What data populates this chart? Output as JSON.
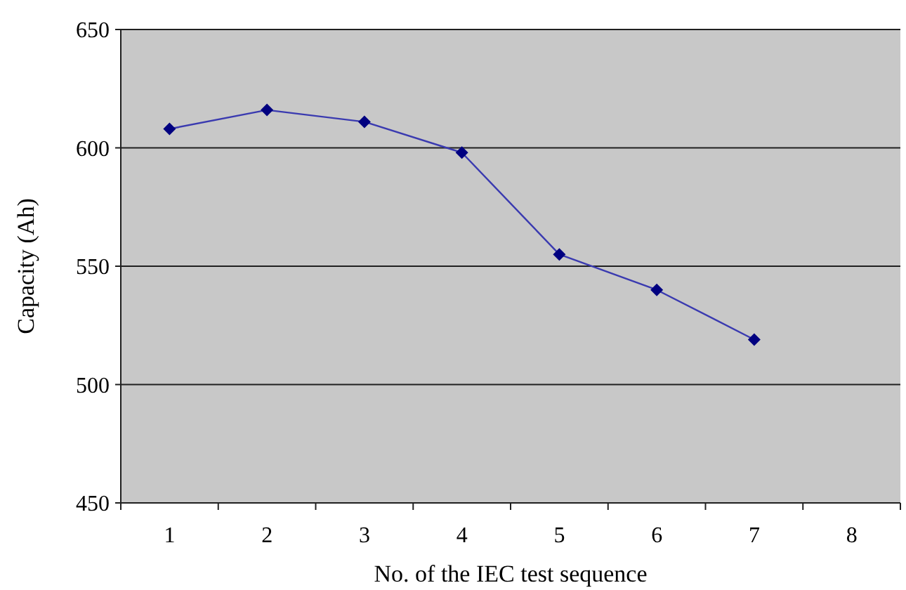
{
  "chart_data": {
    "type": "line",
    "xlabel": "No. of the IEC test sequence",
    "ylabel": "Capacity (Ah)",
    "categories": [
      "1",
      "2",
      "3",
      "4",
      "5",
      "6",
      "7",
      "8"
    ],
    "series": [
      {
        "color": "#000080",
        "values": [
          608,
          616,
          611,
          598,
          555,
          540,
          519,
          null
        ]
      }
    ],
    "ylim": [
      450,
      650
    ],
    "yticks": [
      450,
      500,
      550,
      600,
      650
    ],
    "grid": "y",
    "marker": "diamond",
    "line_style": "solid"
  }
}
